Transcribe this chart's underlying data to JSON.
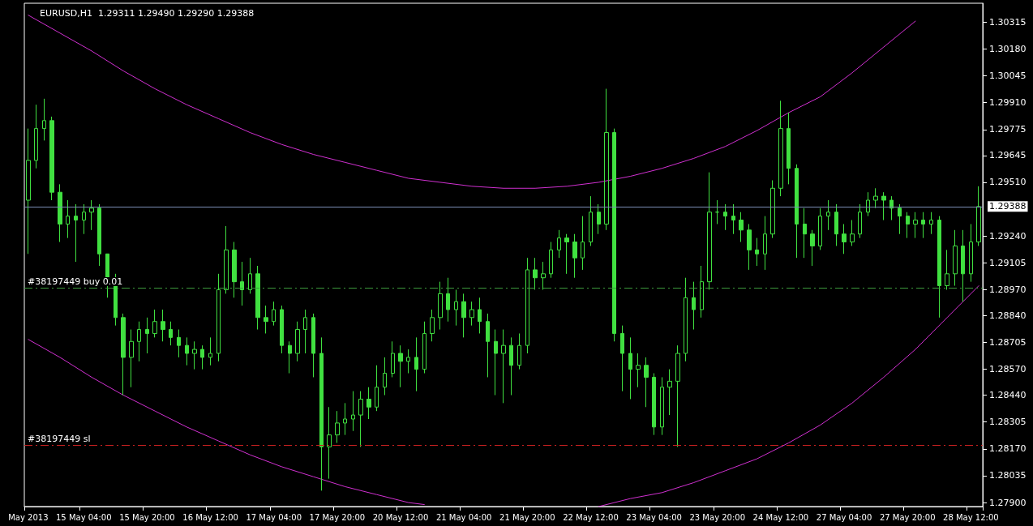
{
  "chart_data": {
    "type": "candlestick",
    "title": "EURUSD,H1  1.29311 1.29490 1.29290 1.29388",
    "color": "#40e040",
    "grid": false,
    "categories": [
      "May 2013",
      null,
      null,
      null,
      null,
      null,
      null,
      "15 May 04:00",
      null,
      null,
      null,
      null,
      null,
      null,
      null,
      "15 May 20:00",
      null,
      null,
      null,
      null,
      null,
      null,
      null,
      "16 May 12:00",
      null,
      null,
      null,
      null,
      null,
      null,
      null,
      "17 May 04:00",
      null,
      null,
      null,
      null,
      null,
      null,
      null,
      "17 May 20:00",
      null,
      null,
      null,
      null,
      null,
      null,
      null,
      "20 May 12:00",
      null,
      null,
      null,
      null,
      null,
      null,
      null,
      "21 May 04:00",
      null,
      null,
      null,
      null,
      null,
      null,
      null,
      "21 May 20:00",
      null,
      null,
      null,
      null,
      null,
      null,
      null,
      "22 May 12:00",
      null,
      null,
      null,
      null,
      null,
      null,
      null,
      "23 May 04:00",
      null,
      null,
      null,
      null,
      null,
      null,
      null,
      "23 May 20:00",
      null,
      null,
      null,
      null,
      null,
      null,
      null,
      "24 May 12:00",
      null,
      null,
      null,
      null,
      null,
      null,
      null,
      "27 May 04:00",
      null,
      null,
      null,
      null,
      null,
      null,
      null,
      "27 May 20:00",
      null,
      null,
      null,
      null,
      null,
      null,
      null,
      "28 May 12:00",
      null
    ],
    "ohlc": [
      [
        1.2942,
        1.2978,
        1.2915,
        1.2962
      ],
      [
        1.2962,
        1.299,
        1.2958,
        1.2978
      ],
      [
        1.2978,
        1.2993,
        1.2972,
        1.2982
      ],
      [
        1.2982,
        1.2984,
        1.2942,
        1.2946
      ],
      [
        1.2946,
        1.295,
        1.2921,
        1.293
      ],
      [
        1.293,
        1.2942,
        1.2923,
        1.2934
      ],
      [
        1.2934,
        1.294,
        1.2911,
        1.2932
      ],
      [
        1.2932,
        1.294,
        1.2925,
        1.2936
      ],
      [
        1.2936,
        1.2942,
        1.2927,
        1.2938
      ],
      [
        1.2938,
        1.294,
        1.2909,
        1.2915
      ],
      [
        1.2915,
        1.2915,
        1.2893,
        1.2899
      ],
      [
        1.2899,
        1.2905,
        1.2879,
        1.2883
      ],
      [
        1.2883,
        1.2885,
        1.2844,
        1.2863
      ],
      [
        1.2863,
        1.2877,
        1.2848,
        1.2871
      ],
      [
        1.2871,
        1.2881,
        1.2861,
        1.2877
      ],
      [
        1.2877,
        1.2883,
        1.2865,
        1.2875
      ],
      [
        1.2875,
        1.2887,
        1.2873,
        1.2881
      ],
      [
        1.2881,
        1.2887,
        1.2871,
        1.2877
      ],
      [
        1.2877,
        1.2881,
        1.2869,
        1.2873
      ],
      [
        1.2873,
        1.2877,
        1.2863,
        1.2869
      ],
      [
        1.2869,
        1.2873,
        1.2859,
        1.2865
      ],
      [
        1.2865,
        1.2871,
        1.2857,
        1.2867
      ],
      [
        1.2867,
        1.2869,
        1.2857,
        1.2863
      ],
      [
        1.2863,
        1.2873,
        1.2859,
        1.2865
      ],
      [
        1.2865,
        1.2905,
        1.2861,
        1.2897
      ],
      [
        1.2897,
        1.2929,
        1.2895,
        1.2917
      ],
      [
        1.2917,
        1.2921,
        1.2893,
        1.2901
      ],
      [
        1.2901,
        1.2911,
        1.2889,
        1.2897
      ],
      [
        1.2897,
        1.2913,
        1.2895,
        1.2905
      ],
      [
        1.2905,
        1.2909,
        1.2877,
        1.2883
      ],
      [
        1.2883,
        1.2889,
        1.2875,
        1.2881
      ],
      [
        1.2881,
        1.2891,
        1.2879,
        1.2887
      ],
      [
        1.2887,
        1.2889,
        1.2865,
        1.2869
      ],
      [
        1.2869,
        1.2871,
        1.2855,
        1.2865
      ],
      [
        1.2865,
        1.2881,
        1.2861,
        1.2877
      ],
      [
        1.2877,
        1.2887,
        1.2865,
        1.2883
      ],
      [
        1.2883,
        1.2885,
        1.2853,
        1.2865
      ],
      [
        1.2865,
        1.2873,
        1.2796,
        1.2818
      ],
      [
        1.2818,
        1.2838,
        1.2802,
        1.2824
      ],
      [
        1.2824,
        1.2836,
        1.282,
        1.283
      ],
      [
        1.283,
        1.284,
        1.2824,
        1.2832
      ],
      [
        1.2832,
        1.2846,
        1.2826,
        1.2834
      ],
      [
        1.2834,
        1.2846,
        1.2818,
        1.2842
      ],
      [
        1.2842,
        1.2848,
        1.2832,
        1.2838
      ],
      [
        1.2838,
        1.2859,
        1.2836,
        1.2848
      ],
      [
        1.2848,
        1.2863,
        1.2844,
        1.2855
      ],
      [
        1.2855,
        1.2871,
        1.2853,
        1.2865
      ],
      [
        1.2865,
        1.2869,
        1.2848,
        1.2861
      ],
      [
        1.2861,
        1.2867,
        1.2855,
        1.2863
      ],
      [
        1.2863,
        1.2873,
        1.2846,
        1.2857
      ],
      [
        1.2857,
        1.2881,
        1.2855,
        1.2875
      ],
      [
        1.2875,
        1.2887,
        1.2871,
        1.2883
      ],
      [
        1.2883,
        1.2901,
        1.2877,
        1.2895
      ],
      [
        1.2895,
        1.2903,
        1.2881,
        1.2887
      ],
      [
        1.2887,
        1.2897,
        1.2879,
        1.2891
      ],
      [
        1.2891,
        1.2895,
        1.2873,
        1.2883
      ],
      [
        1.2883,
        1.2891,
        1.2879,
        1.2887
      ],
      [
        1.2887,
        1.2893,
        1.2875,
        1.2881
      ],
      [
        1.2881,
        1.2885,
        1.2853,
        1.2871
      ],
      [
        1.2871,
        1.2877,
        1.2844,
        1.2865
      ],
      [
        1.2865,
        1.2877,
        1.284,
        1.2869
      ],
      [
        1.2869,
        1.2873,
        1.2844,
        1.2859
      ],
      [
        1.2859,
        1.2875,
        1.2857,
        1.2869
      ],
      [
        1.2869,
        1.2913,
        1.2865,
        1.2907
      ],
      [
        1.2907,
        1.2913,
        1.2897,
        1.2903
      ],
      [
        1.2903,
        1.2911,
        1.2897,
        1.2905
      ],
      [
        1.2905,
        1.2921,
        1.2903,
        1.2917
      ],
      [
        1.2917,
        1.2927,
        1.2913,
        1.2923
      ],
      [
        1.2923,
        1.2925,
        1.2905,
        1.2921
      ],
      [
        1.2921,
        1.2925,
        1.2903,
        1.2913
      ],
      [
        1.2913,
        1.2934,
        1.2907,
        1.2921
      ],
      [
        1.2921,
        1.2944,
        1.2919,
        1.2936
      ],
      [
        1.2936,
        1.294,
        1.2925,
        1.293
      ],
      [
        1.293,
        1.2998,
        1.2927,
        1.2976
      ],
      [
        1.2976,
        1.2978,
        1.2871,
        1.2875
      ],
      [
        1.2875,
        1.2879,
        1.2846,
        1.2865
      ],
      [
        1.2865,
        1.2873,
        1.2842,
        1.2857
      ],
      [
        1.2857,
        1.2865,
        1.2848,
        1.2859
      ],
      [
        1.2859,
        1.2863,
        1.2838,
        1.2853
      ],
      [
        1.2853,
        1.2855,
        1.2824,
        1.2828
      ],
      [
        1.2828,
        1.2853,
        1.2824,
        1.2848
      ],
      [
        1.2848,
        1.2857,
        1.2834,
        1.2851
      ],
      [
        1.2851,
        1.2869,
        1.2818,
        1.2865
      ],
      [
        1.2865,
        1.2903,
        1.2861,
        1.2893
      ],
      [
        1.2893,
        1.2901,
        1.2877,
        1.2887
      ],
      [
        1.2887,
        1.2909,
        1.2883,
        1.2901
      ],
      [
        1.2901,
        1.2956,
        1.2897,
        1.2936
      ],
      [
        1.2936,
        1.2942,
        1.293,
        1.2936
      ],
      [
        1.2936,
        1.294,
        1.2927,
        1.2934
      ],
      [
        1.2934,
        1.294,
        1.2925,
        1.2932
      ],
      [
        1.2932,
        1.2936,
        1.2921,
        1.2927
      ],
      [
        1.2927,
        1.293,
        1.2907,
        1.2917
      ],
      [
        1.2917,
        1.2923,
        1.2909,
        1.2915
      ],
      [
        1.2915,
        1.2934,
        1.2907,
        1.2925
      ],
      [
        1.2925,
        1.2952,
        1.2923,
        1.2948
      ],
      [
        1.2948,
        1.2992,
        1.2944,
        1.2978
      ],
      [
        1.2978,
        1.2986,
        1.295,
        1.2958
      ],
      [
        1.2958,
        1.296,
        1.2913,
        1.293
      ],
      [
        1.293,
        1.2938,
        1.2913,
        1.2925
      ],
      [
        1.2925,
        1.2927,
        1.2909,
        1.2919
      ],
      [
        1.2919,
        1.2938,
        1.2917,
        1.2934
      ],
      [
        1.2934,
        1.2942,
        1.2927,
        1.2936
      ],
      [
        1.2936,
        1.294,
        1.2919,
        1.2925
      ],
      [
        1.2925,
        1.293,
        1.2915,
        1.2921
      ],
      [
        1.2921,
        1.2932,
        1.2919,
        1.2925
      ],
      [
        1.2925,
        1.294,
        1.2923,
        1.2936
      ],
      [
        1.2936,
        1.2946,
        1.2934,
        1.2942
      ],
      [
        1.2942,
        1.2948,
        1.2938,
        1.2944
      ],
      [
        1.2944,
        1.2946,
        1.2932,
        1.2942
      ],
      [
        1.2942,
        1.2944,
        1.2932,
        1.2938
      ],
      [
        1.2938,
        1.294,
        1.2925,
        1.2934
      ],
      [
        1.2934,
        1.2936,
        1.2923,
        1.293
      ],
      [
        1.293,
        1.2936,
        1.2923,
        1.2932
      ],
      [
        1.2932,
        1.2936,
        1.2923,
        1.293
      ],
      [
        1.293,
        1.2936,
        1.2925,
        1.2932
      ],
      [
        1.2932,
        1.2934,
        1.2883,
        1.2899
      ],
      [
        1.2899,
        1.2917,
        1.2897,
        1.2905
      ],
      [
        1.2905,
        1.2927,
        1.2899,
        1.2919
      ],
      [
        1.2919,
        1.2927,
        1.2891,
        1.2905
      ],
      [
        1.2905,
        1.293,
        1.2901,
        1.2921
      ],
      [
        1.2921,
        1.2949,
        1.2919,
        1.29388
      ]
    ],
    "series": [
      {
        "type": "line",
        "color": "#d030d0",
        "marker": "none",
        "values": [
          1.3035,
          null,
          null,
          null,
          1.3026,
          null,
          null,
          null,
          1.3017,
          null,
          null,
          null,
          1.3007,
          null,
          null,
          null,
          1.2998,
          null,
          null,
          null,
          1.299,
          null,
          null,
          null,
          1.2983,
          null,
          null,
          null,
          1.2976,
          null,
          null,
          null,
          1.297,
          null,
          null,
          null,
          1.2965,
          null,
          null,
          null,
          1.2961,
          null,
          null,
          null,
          1.2957,
          null,
          null,
          null,
          1.2953,
          null,
          null,
          null,
          1.2951,
          null,
          null,
          null,
          1.2949,
          null,
          null,
          null,
          1.2948,
          null,
          null,
          null,
          1.2948,
          null,
          null,
          null,
          1.2949,
          null,
          null,
          null,
          1.2951,
          null,
          null,
          null,
          1.2954,
          null,
          null,
          null,
          1.2958,
          null,
          null,
          null,
          1.2963,
          null,
          null,
          null,
          1.2969,
          null,
          null,
          null,
          1.2977,
          null,
          null,
          null,
          1.2986,
          null,
          null,
          null,
          1.2994,
          null,
          null,
          null,
          1.3006,
          null,
          null,
          null,
          1.3019,
          null,
          null,
          null,
          1.3032,
          null,
          null,
          null,
          null,
          null,
          null,
          null,
          null
        ]
      },
      {
        "type": "line",
        "color": "#d030d0",
        "marker": "none",
        "values": [
          1.2872,
          null,
          null,
          null,
          1.2863,
          null,
          null,
          null,
          1.2853,
          null,
          null,
          null,
          1.2844,
          null,
          null,
          null,
          1.2836,
          null,
          null,
          null,
          1.2828,
          null,
          null,
          null,
          1.2821,
          null,
          null,
          null,
          1.2814,
          null,
          null,
          null,
          1.2808,
          null,
          null,
          null,
          1.2803,
          null,
          null,
          null,
          1.2798,
          null,
          null,
          null,
          1.2794,
          null,
          null,
          null,
          1.279,
          null,
          1.2789,
          null,
          null,
          null,
          null,
          null,
          null,
          null,
          null,
          null,
          null,
          null,
          null,
          null,
          null,
          null,
          null,
          null,
          null,
          null,
          null,
          null,
          null,
          null,
          null,
          null,
          null,
          null,
          null,
          null,
          null,
          null,
          null,
          null,
          null,
          null,
          null,
          null,
          null,
          null,
          null,
          null,
          null,
          null,
          null,
          null,
          null,
          null,
          null,
          null,
          null,
          null,
          null,
          null,
          null,
          null,
          null,
          null,
          null,
          null,
          null,
          null,
          null,
          null,
          null,
          null,
          null,
          null,
          null,
          null,
          null
        ]
      },
      {
        "type": "line",
        "color": "#d030d0",
        "marker": "none",
        "values": [
          null,
          null,
          null,
          null,
          null,
          null,
          null,
          null,
          null,
          null,
          null,
          null,
          null,
          null,
          null,
          null,
          null,
          null,
          null,
          null,
          null,
          null,
          null,
          null,
          null,
          null,
          null,
          null,
          null,
          null,
          null,
          null,
          null,
          null,
          null,
          null,
          null,
          null,
          null,
          null,
          null,
          null,
          null,
          null,
          null,
          null,
          null,
          null,
          null,
          null,
          null,
          null,
          null,
          null,
          null,
          null,
          null,
          null,
          null,
          null,
          null,
          null,
          null,
          null,
          null,
          null,
          null,
          null,
          null,
          null,
          null,
          null,
          1.2788,
          null,
          null,
          null,
          1.2792,
          null,
          null,
          null,
          1.2795,
          null,
          null,
          null,
          1.28,
          null,
          null,
          null,
          1.2806,
          null,
          null,
          null,
          1.2812,
          null,
          null,
          null,
          1.282,
          null,
          null,
          null,
          1.2829,
          null,
          null,
          null,
          1.284,
          null,
          null,
          null,
          1.2853,
          null,
          null,
          null,
          1.2867,
          null,
          null,
          null,
          1.2883,
          null,
          null,
          null,
          1.2899
        ]
      }
    ],
    "ref_lines": [
      {
        "axis": "y",
        "value": 1.29388,
        "label": "1.29388",
        "color": "#7b8db5",
        "line_style": "solid"
      },
      {
        "axis": "y",
        "value": 1.2898,
        "label": "#38197449 buy 0.01",
        "color": "#3c9a3c",
        "line_style": "dashed"
      },
      {
        "axis": "y",
        "value": 1.2819,
        "label": "#38197449 sl",
        "color": "#c82020",
        "line_style": "dashed"
      }
    ],
    "ylim": [
      1.2788,
      1.3041
    ],
    "yticks": [
      {
        "value": 1.30315,
        "label": "1.30315"
      },
      {
        "value": 1.3018,
        "label": "1.30180"
      },
      {
        "value": 1.30045,
        "label": "1.30045"
      },
      {
        "value": 1.2991,
        "label": "1.29910"
      },
      {
        "value": 1.29775,
        "label": "1.29775"
      },
      {
        "value": 1.29645,
        "label": "1.29645"
      },
      {
        "value": 1.2951,
        "label": "1.29510"
      },
      {
        "value": 1.2924,
        "label": "1.29240"
      },
      {
        "value": 1.29105,
        "label": "1.29105"
      },
      {
        "value": 1.2897,
        "label": "1.28970"
      },
      {
        "value": 1.2884,
        "label": "1.28840"
      },
      {
        "value": 1.28705,
        "label": "1.28705"
      },
      {
        "value": 1.2857,
        "label": "1.28570"
      },
      {
        "value": 1.2844,
        "label": "1.28440"
      },
      {
        "value": 1.28305,
        "label": "1.28305"
      },
      {
        "value": 1.2817,
        "label": "1.28170"
      },
      {
        "value": 1.28035,
        "label": "1.28035"
      },
      {
        "value": 1.279,
        "label": "1.27900"
      }
    ]
  }
}
